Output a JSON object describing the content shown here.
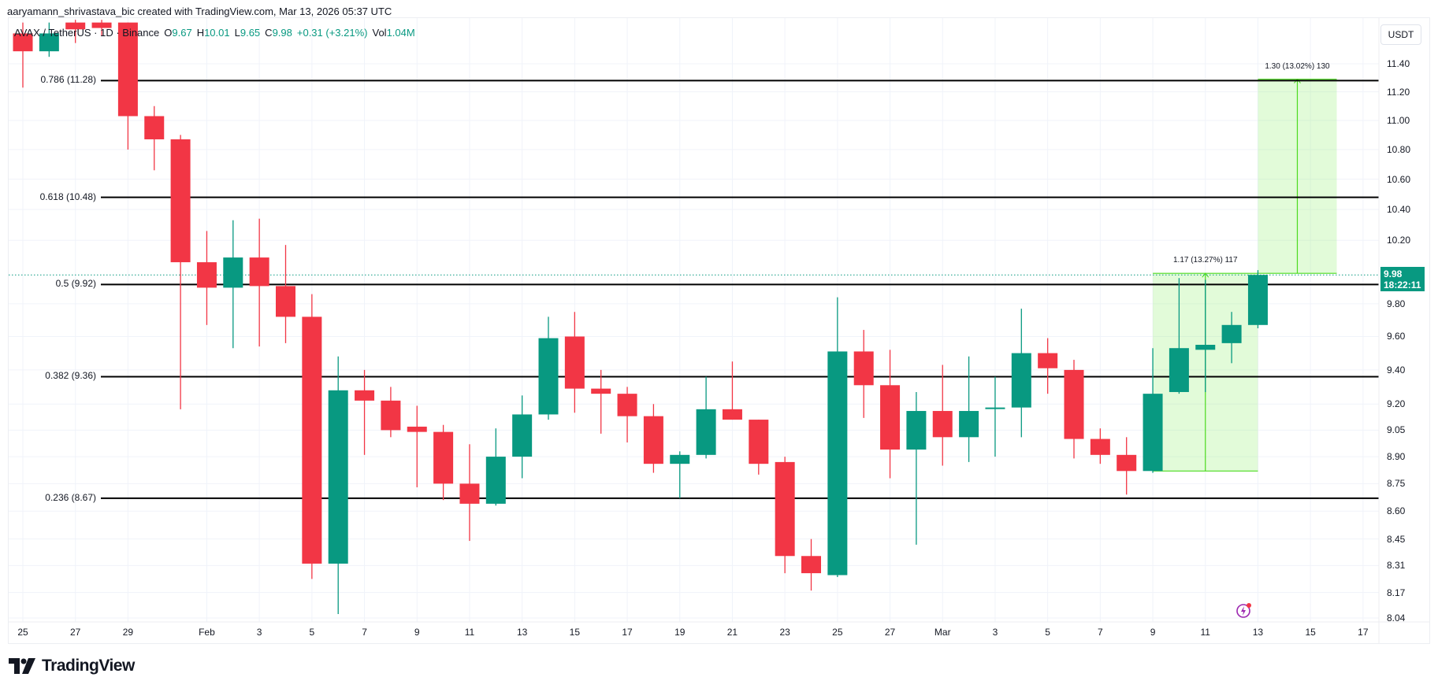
{
  "header": {
    "credit": "aaryamann_shrivastava_bic created with TradingView.com, Mar 13, 2026 05:37 UTC"
  },
  "legend": {
    "symbol": "AVAX / TetherUS · 1D · Binance",
    "open_label": "O",
    "open": "9.67",
    "high_label": "H",
    "high": "10.01",
    "low_label": "L",
    "low": "9.65",
    "close_label": "C",
    "close": "9.98",
    "change": "+0.31 (+3.21%)",
    "vol_label": "Vol",
    "vol": "1.04M"
  },
  "price_axis": {
    "currency_button": "USDT",
    "current_price": "9.98",
    "countdown": "18:22:11"
  },
  "branding": {
    "logo_text": "TradingView"
  },
  "colors": {
    "up": "#089981",
    "down": "#F23645",
    "fib_line": "#000000",
    "measure_fill": "rgba(150,240,120,0.28)",
    "measure_line": "#4cdb1f",
    "grid": "#f0f3fa",
    "alert_icon": "#9c27b0"
  },
  "chart_data": {
    "type": "candlestick",
    "title": "AVAX / TetherUS · 1D · Binance",
    "ylabel": "USDT",
    "scale": "log",
    "ylim": [
      8.0,
      11.6
    ],
    "y_ticks": [
      "11.40",
      "11.20",
      "11.00",
      "10.80",
      "10.60",
      "10.40",
      "10.20",
      "9.80",
      "9.60",
      "9.40",
      "9.20",
      "9.05",
      "8.90",
      "8.75",
      "8.60",
      "8.45",
      "8.31",
      "8.17",
      "8.04"
    ],
    "x_ticks": [
      "25",
      "27",
      "29",
      "Feb",
      "3",
      "5",
      "7",
      "9",
      "11",
      "13",
      "15",
      "17",
      "19",
      "21",
      "23",
      "25",
      "27",
      "Mar",
      "3",
      "5",
      "7",
      "9",
      "11",
      "13",
      "15",
      "17"
    ],
    "candles": [
      {
        "date": "Jan 25",
        "o": 11.62,
        "h": 11.7,
        "l": 11.23,
        "c": 11.49
      },
      {
        "date": "Jan 26",
        "o": 11.49,
        "h": 11.7,
        "l": 11.45,
        "c": 11.62
      },
      {
        "date": "Jan 27",
        "o": 11.7,
        "h": 11.72,
        "l": 11.55,
        "c": 11.65
      },
      {
        "date": "Jan 28",
        "o": 11.7,
        "h": 11.72,
        "l": 11.6,
        "c": 11.66
      },
      {
        "date": "Jan 29",
        "o": 11.7,
        "h": 11.7,
        "l": 10.8,
        "c": 11.03
      },
      {
        "date": "Jan 30",
        "o": 11.03,
        "h": 11.1,
        "l": 10.66,
        "c": 10.87
      },
      {
        "date": "Jan 31",
        "o": 10.87,
        "h": 10.9,
        "l": 9.17,
        "c": 10.06
      },
      {
        "date": "Feb 1",
        "o": 10.06,
        "h": 10.26,
        "l": 9.67,
        "c": 9.9
      },
      {
        "date": "Feb 2",
        "o": 9.9,
        "h": 10.33,
        "l": 9.53,
        "c": 10.09
      },
      {
        "date": "Feb 3",
        "o": 10.09,
        "h": 10.34,
        "l": 9.54,
        "c": 9.91
      },
      {
        "date": "Feb 4",
        "o": 9.91,
        "h": 10.17,
        "l": 9.56,
        "c": 9.72
      },
      {
        "date": "Feb 5",
        "o": 9.72,
        "h": 9.86,
        "l": 8.24,
        "c": 8.32
      },
      {
        "date": "Feb 6",
        "o": 8.32,
        "h": 9.48,
        "l": 8.06,
        "c": 9.28
      },
      {
        "date": "Feb 7",
        "o": 9.28,
        "h": 9.4,
        "l": 8.91,
        "c": 9.22
      },
      {
        "date": "Feb 8",
        "o": 9.22,
        "h": 9.3,
        "l": 9.01,
        "c": 9.05
      },
      {
        "date": "Feb 9",
        "o": 9.07,
        "h": 9.19,
        "l": 8.73,
        "c": 9.04
      },
      {
        "date": "Feb 10",
        "o": 9.04,
        "h": 9.08,
        "l": 8.66,
        "c": 8.75
      },
      {
        "date": "Feb 11",
        "o": 8.75,
        "h": 8.97,
        "l": 8.44,
        "c": 8.64
      },
      {
        "date": "Feb 12",
        "o": 8.64,
        "h": 9.06,
        "l": 8.63,
        "c": 8.9
      },
      {
        "date": "Feb 13",
        "o": 8.9,
        "h": 9.25,
        "l": 8.78,
        "c": 9.14
      },
      {
        "date": "Feb 14",
        "o": 9.14,
        "h": 9.72,
        "l": 9.11,
        "c": 9.59
      },
      {
        "date": "Feb 15",
        "o": 9.6,
        "h": 9.75,
        "l": 9.15,
        "c": 9.29
      },
      {
        "date": "Feb 16",
        "o": 9.29,
        "h": 9.4,
        "l": 9.03,
        "c": 9.26
      },
      {
        "date": "Feb 17",
        "o": 9.26,
        "h": 9.3,
        "l": 8.98,
        "c": 9.13
      },
      {
        "date": "Feb 18",
        "o": 9.13,
        "h": 9.2,
        "l": 8.81,
        "c": 8.86
      },
      {
        "date": "Feb 19",
        "o": 8.86,
        "h": 8.93,
        "l": 8.67,
        "c": 8.91
      },
      {
        "date": "Feb 20",
        "o": 8.91,
        "h": 9.36,
        "l": 8.89,
        "c": 9.17
      },
      {
        "date": "Feb 21",
        "o": 9.17,
        "h": 9.45,
        "l": 9.11,
        "c": 9.11
      },
      {
        "date": "Feb 22",
        "o": 9.11,
        "h": 9.11,
        "l": 8.8,
        "c": 8.86
      },
      {
        "date": "Feb 23",
        "o": 8.87,
        "h": 8.9,
        "l": 8.27,
        "c": 8.36
      },
      {
        "date": "Feb 24",
        "o": 8.36,
        "h": 8.45,
        "l": 8.18,
        "c": 8.27
      },
      {
        "date": "Feb 25",
        "o": 8.26,
        "h": 9.84,
        "l": 8.25,
        "c": 9.51
      },
      {
        "date": "Feb 26",
        "o": 9.51,
        "h": 9.64,
        "l": 9.12,
        "c": 9.31
      },
      {
        "date": "Feb 27",
        "o": 9.31,
        "h": 9.52,
        "l": 8.78,
        "c": 8.94
      },
      {
        "date": "Feb 28",
        "o": 8.94,
        "h": 9.27,
        "l": 8.42,
        "c": 9.16
      },
      {
        "date": "Mar 1",
        "o": 9.16,
        "h": 9.43,
        "l": 8.85,
        "c": 9.01
      },
      {
        "date": "Mar 2",
        "o": 9.01,
        "h": 9.48,
        "l": 8.87,
        "c": 9.16
      },
      {
        "date": "Mar 3",
        "o": 9.18,
        "h": 9.36,
        "l": 8.9,
        "c": 9.18
      },
      {
        "date": "Mar 4",
        "o": 9.18,
        "h": 9.77,
        "l": 9.01,
        "c": 9.5
      },
      {
        "date": "Mar 5",
        "o": 9.5,
        "h": 9.59,
        "l": 9.26,
        "c": 9.41
      },
      {
        "date": "Mar 6",
        "o": 9.4,
        "h": 9.46,
        "l": 8.89,
        "c": 9.0
      },
      {
        "date": "Mar 7",
        "o": 9.0,
        "h": 9.06,
        "l": 8.86,
        "c": 8.91
      },
      {
        "date": "Mar 8",
        "o": 8.91,
        "h": 9.01,
        "l": 8.69,
        "c": 8.82
      },
      {
        "date": "Mar 9",
        "o": 8.82,
        "h": 9.53,
        "l": 8.81,
        "c": 9.26
      },
      {
        "date": "Mar 10",
        "o": 9.27,
        "h": 9.96,
        "l": 9.26,
        "c": 9.53
      },
      {
        "date": "Mar 11",
        "o": 9.52,
        "h": 9.95,
        "l": 9.27,
        "c": 9.55
      },
      {
        "date": "Mar 12",
        "o": 9.56,
        "h": 9.75,
        "l": 9.44,
        "c": 9.67
      },
      {
        "date": "Mar 13",
        "o": 9.67,
        "h": 10.01,
        "l": 9.65,
        "c": 9.98
      }
    ],
    "fib_levels": [
      {
        "ratio": "0.786",
        "price": 11.28,
        "label": "0.786 (11.28)"
      },
      {
        "ratio": "0.618",
        "price": 10.48,
        "label": "0.618 (10.48)"
      },
      {
        "ratio": "0.5",
        "price": 9.92,
        "label": "0.5 (9.92)"
      },
      {
        "ratio": "0.382",
        "price": 9.36,
        "label": "0.382 (9.36)"
      },
      {
        "ratio": "0.236",
        "price": 8.67,
        "label": "0.236 (8.67)"
      }
    ],
    "measurements": [
      {
        "label": "1.17 (13.27%) 117",
        "from_date": "Mar 9",
        "to_date": "Mar 13",
        "low": 8.82,
        "high": 9.99
      },
      {
        "label": "1.30 (13.02%) 130",
        "from_date": "Mar 13",
        "to_date": "Mar 16",
        "low": 9.99,
        "high": 11.29
      }
    ],
    "current_price_line": 9.98
  }
}
